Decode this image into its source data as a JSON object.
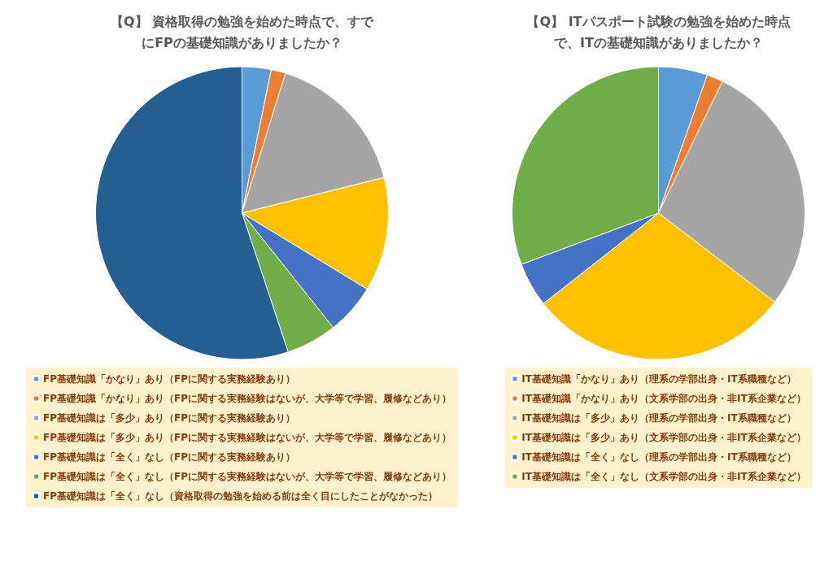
{
  "chart_data": [
    {
      "type": "pie",
      "title": "【Q】 資格取得の勉強を始めた時点で、すでにFPの基礎知識がありましたか？",
      "legend": "bottom",
      "categories": [
        "FP基礎知識「かなり」あり（FPに関する実務経験あり）",
        "FP基礎知識「かなり」あり（FPに関する実務経験はないが、大学等で学習、履修などあり）",
        "FP基礎知識は「多少」あり（FPに関する実務経験あり）",
        "FP基礎知識は「多少」あり（FPに関する実務経験はないが、大学等で学習、履修などあり）",
        "FP基礎知識は「全く」なし（FPに関する実務経験あり）",
        "FP基礎知識は「全く」なし（FPに関する実務経験はないが、大学等で学習、履修などあり）",
        "FP基礎知識は「全く」なし（資格取得の勉強を始める前は全く目にしたことがなかった）"
      ],
      "values": [
        3.2,
        1.6,
        16.3,
        12.6,
        5.6,
        5.6,
        55.1
      ],
      "colors": [
        "#5b9bd5",
        "#ed7d31",
        "#a5a5a5",
        "#ffc000",
        "#4472c4",
        "#70ad47",
        "#255e91"
      ]
    },
    {
      "type": "pie",
      "title": "【Q】 ITパスポート試験の勉強を始めた時点で、ITの基礎知識がありましたか？",
      "legend": "bottom",
      "categories": [
        "IT基礎知識「かなり」あり（理系の学部出身・IT系職種など）",
        "IT基礎知識「かなり」あり（文系学部の出身・非IT系企業など）",
        "IT基礎知識は「多少」あり（理系の学部出身・IT系職種など）",
        "IT基礎知識は「多少」あり（文系学部の出身・非IT系企業など）",
        "IT基礎知識は「全く」なし（理系の学部出身・IT系職種など）",
        "IT基礎知識は「全く」なし（文系学部の出身・非IT系企業など）"
      ],
      "values": [
        5.4,
        1.8,
        28.2,
        29.0,
        4.9,
        30.7
      ],
      "colors": [
        "#5b9bd5",
        "#ed7d31",
        "#a5a5a5",
        "#ffc000",
        "#4472c4",
        "#70ad47"
      ]
    }
  ]
}
